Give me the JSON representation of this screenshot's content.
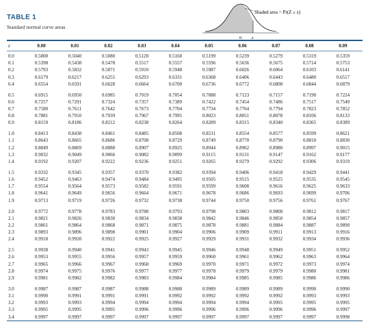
{
  "header": {
    "title": "TABLE 1",
    "subtitle": "Standard normal curve areas",
    "curve_label": "Shaded area = Pr(Z ≤ z)",
    "axis_zero": "0",
    "axis_z": "z"
  },
  "columns": [
    "z",
    "0.00",
    "0.01",
    "0.02",
    "0.03",
    "0.04",
    "0.05",
    "0.06",
    "0.07",
    "0.08",
    "0.09"
  ],
  "groups": [
    [
      [
        "0.0",
        "0.5000",
        "0.5040",
        "0.5080",
        "0.5120",
        "0.5160",
        "0.5199",
        "0.5239",
        "0.5279",
        "0.5319",
        "0.5359"
      ],
      [
        "0.1",
        "0.5398",
        "0.5438",
        "0.5478",
        "0.5517",
        "0.5557",
        "0.5596",
        "0.5636",
        "0.5675",
        "0.5714",
        "0.5753"
      ],
      [
        "0.2",
        "0.5793",
        "0.5832",
        "0.5871",
        "0.5910",
        "0.5948",
        "0.5987",
        "0.6026",
        "0.6064",
        "0.6103",
        "0.6141"
      ],
      [
        "0.3",
        "0.6179",
        "0.6217",
        "0.6255",
        "0.6293",
        "0.6331",
        "0.6368",
        "0.6406",
        "0.6443",
        "0.6480",
        "0.6517"
      ],
      [
        "0.4",
        "0.6554",
        "0.6591",
        "0.6628",
        "0.6664",
        "0.6700",
        "0.6736",
        "0.6772",
        "0.6808",
        "0.6844",
        "0.6879"
      ]
    ],
    [
      [
        "0.5",
        "0.6915",
        "0.6950",
        "0.6985",
        "0.7019",
        "0.7054",
        "0.7088",
        "0.7123",
        "0.7157",
        "0.7190",
        "0.7224"
      ],
      [
        "0.6",
        "0.7257",
        "0.7291",
        "0.7324",
        "0.7357",
        "0.7389",
        "0.7422",
        "0.7454",
        "0.7486",
        "0.7517",
        "0.7549"
      ],
      [
        "0.7",
        "0.7580",
        "0.7611",
        "0.7642",
        "0.7673",
        "0.7704",
        "0.7734",
        "0.7764",
        "0.7794",
        "0.7823",
        "0.7852"
      ],
      [
        "0.8",
        "0.7881",
        "0.7910",
        "0.7939",
        "0.7967",
        "0.7995",
        "0.8023",
        "0.8051",
        "0.8078",
        "0.8106",
        "0.8133"
      ],
      [
        "0.9",
        "0.8159",
        "0.8186",
        "0.8212",
        "0.8238",
        "0.8264",
        "0.8289",
        "0.8315",
        "0.8340",
        "0.8365",
        "0.8389"
      ]
    ],
    [
      [
        "1.0",
        "0.8413",
        "0.8438",
        "0.8461",
        "0.8485",
        "0.8508",
        "0.8531",
        "0.8554",
        "0.8577",
        "0.8599",
        "0.8621"
      ],
      [
        "1.1",
        "0.8643",
        "0.8665",
        "0.8686",
        "0.8708",
        "0.8729",
        "0.8749",
        "0.8770",
        "0.8790",
        "0.8810",
        "0.8830"
      ],
      [
        "1.2",
        "0.8849",
        "0.8869",
        "0.8888",
        "0.8907",
        "0.8925",
        "0.8944",
        "0.8962",
        "0.8980",
        "0.8997",
        "0.9015"
      ],
      [
        "1.3",
        "0.9032",
        "0.9049",
        "0.9066",
        "0.9082",
        "0.9099",
        "0.9115",
        "0.9131",
        "0.9147",
        "0.9162",
        "0.9177"
      ],
      [
        "1.4",
        "0.9192",
        "0.9207",
        "0.9222",
        "0.9236",
        "0.9251",
        "0.9265",
        "0.9279",
        "0.9292",
        "0.9306",
        "0.9319"
      ]
    ],
    [
      [
        "1.5",
        "0.9332",
        "0.9345",
        "0.9357",
        "0.9370",
        "0.9382",
        "0.9394",
        "0.9406",
        "0.9418",
        "0.9429",
        "0.9441"
      ],
      [
        "1.6",
        "0.9452",
        "0.9463",
        "0.9474",
        "0.9484",
        "0.9495",
        "0.9505",
        "0.9515",
        "0.9525",
        "0.9535",
        "0.9545"
      ],
      [
        "1.7",
        "0.9554",
        "0.9564",
        "0.9573",
        "0.9582",
        "0.9591",
        "0.9599",
        "0.9608",
        "0.9616",
        "0.9625",
        "0.9633"
      ],
      [
        "1.8",
        "0.9641",
        "0.9649",
        "0.9656",
        "0.9664",
        "0.9671",
        "0.9678",
        "0.9686",
        "0.9693",
        "0.9699",
        "0.9706"
      ],
      [
        "1.9",
        "0.9713",
        "0.9719",
        "0.9726",
        "0.9732",
        "0.9738",
        "0.9744",
        "0.9750",
        "0.9756",
        "0.9761",
        "0.9767"
      ]
    ],
    [
      [
        "2.0",
        "0.9772",
        "0.9778",
        "0.9783",
        "0.9788",
        "0.9793",
        "0.9798",
        "0.9803",
        "0.9808",
        "0.9812",
        "0.9817"
      ],
      [
        "2.1",
        "0.9821",
        "0.9826",
        "0.9830",
        "0.9834",
        "0.9838",
        "0.9842",
        "0.9846",
        "0.9850",
        "0.9854",
        "0.9857"
      ],
      [
        "2.2",
        "0.9861",
        "0.9864",
        "0.9868",
        "0.9871",
        "0.9875",
        "0.9878",
        "0.9881",
        "0.9884",
        "0.9887",
        "0.9890"
      ],
      [
        "2.3",
        "0.9893",
        "0.9896",
        "0.9898",
        "0.9901",
        "0.9904",
        "0.9906",
        "0.9909",
        "0.9911",
        "0.9913",
        "0.9916"
      ],
      [
        "2.4",
        "0.9918",
        "0.9920",
        "0.9922",
        "0.9925",
        "0.9927",
        "0.9929",
        "0.9931",
        "0.9932",
        "0.9934",
        "0.9936"
      ]
    ],
    [
      [
        "2.5",
        "0.9938",
        "0.9940",
        "0.9941",
        "0.9943",
        "0.9945",
        "0.9946",
        "0.9948",
        "0.9949",
        "0.9951",
        "0.9952"
      ],
      [
        "2.6",
        "0.9953",
        "0.9955",
        "0.9956",
        "0.9957",
        "0.9959",
        "0.9960",
        "0.9961",
        "0.9962",
        "0.9963",
        "0.9964"
      ],
      [
        "2.7",
        "0.9965",
        "0.9966",
        "0.9967",
        "0.9968",
        "0.9969",
        "0.9970",
        "0.9971",
        "0.9972",
        "0.9973",
        "0.9974"
      ],
      [
        "2.8",
        "0.9974",
        "0.9975",
        "0.9976",
        "0.9977",
        "0.9977",
        "0.9978",
        "0.9979",
        "0.9979",
        "0.9980",
        "0.9981"
      ],
      [
        "2.9",
        "0.9981",
        "0.9982",
        "0.9982",
        "0.9983",
        "0.9984",
        "0.9984",
        "0.9985",
        "0.9985",
        "0.9986",
        "0.9986"
      ]
    ],
    [
      [
        "3.0",
        "0.9987",
        "0.9987",
        "0.9987",
        "0.9988",
        "0.9988",
        "0.9989",
        "0.9989",
        "0.9989",
        "0.9990",
        "0.9990"
      ],
      [
        "3.1",
        "0.9990",
        "0.9991",
        "0.9991",
        "0.9991",
        "0.9992",
        "0.9992",
        "0.9992",
        "0.9992",
        "0.9993",
        "0.9993"
      ],
      [
        "3.2",
        "0.9993",
        "0.9993",
        "0.9994",
        "0.9994",
        "0.9994",
        "0.9994",
        "0.9994",
        "0.9995",
        "0.9995",
        "0.9995"
      ],
      [
        "3.3",
        "0.9995",
        "0.9995",
        "0.9995",
        "0.9996",
        "0.9996",
        "0.9996",
        "0.9996",
        "0.9996",
        "0.9996",
        "0.9997"
      ],
      [
        "3.4",
        "0.9997",
        "0.9997",
        "0.9997",
        "0.9997",
        "0.9997",
        "0.9997",
        "0.9997",
        "0.9997",
        "0.9997",
        "0.9998"
      ]
    ]
  ],
  "colors": {
    "title": "#1e5a8a",
    "rule": "#1e5a8a",
    "shade": "#c8c8c8"
  }
}
